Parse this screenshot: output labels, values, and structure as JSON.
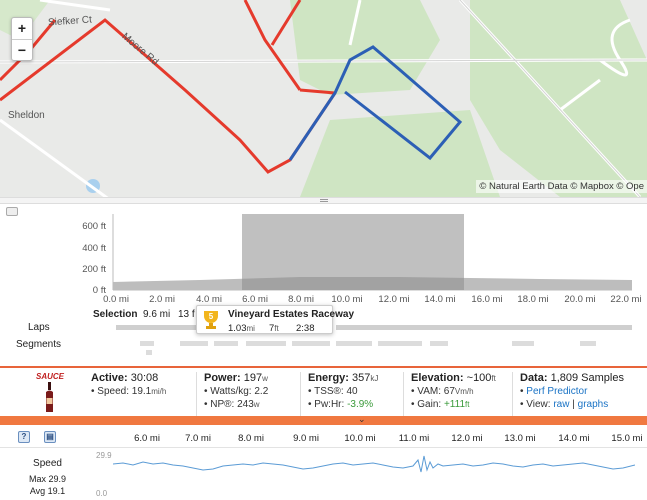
{
  "map": {
    "zoom_in": "+",
    "zoom_out": "−",
    "attribution": "© Natural Earth Data © Mapbox © Ope",
    "street_labels": [
      "Siefker Ct",
      "Moore Rd",
      "Sheldon"
    ]
  },
  "elevation": {
    "y_ticks": [
      "600 ft",
      "400 ft",
      "200 ft",
      "0 ft"
    ],
    "x_ticks": [
      "0.0 mi",
      "2.0 mi",
      "4.0 mi",
      "6.0 mi",
      "8.0 mi",
      "10.0 mi",
      "12.0 mi",
      "14.0 mi",
      "16.0 mi",
      "18.0 mi",
      "20.0 mi",
      "22.0 mi"
    ]
  },
  "selection": {
    "label": "Selection",
    "distance": "9.6 mi",
    "elevation": "13 f"
  },
  "rows": {
    "laps": "Laps",
    "segments": "Segments"
  },
  "tooltip": {
    "rank": "5",
    "name": "Vineyard Estates Raceway",
    "distance": "1.03",
    "distance_unit": "mi",
    "elevation": "7",
    "elevation_unit": "ft",
    "time": "2:38"
  },
  "stats": {
    "brand": "SAUCE",
    "active": {
      "title": "Active:",
      "value": "30:08",
      "speed_label": "• Speed:",
      "speed": "19.1",
      "speed_unit": "mi/h"
    },
    "power": {
      "title": "Power:",
      "value": "197",
      "unit": "w",
      "wkg_label": "• Watts/kg:",
      "wkg": "2.2",
      "np_label": "• NP®:",
      "np": "243",
      "np_unit": "w"
    },
    "energy": {
      "title": "Energy:",
      "value": "357",
      "unit": "kJ",
      "tss_label": "• TSS®:",
      "tss": "40",
      "pwhr_label": "• Pw:Hr:",
      "pwhr": "-3.9%"
    },
    "elevation": {
      "title": "Elevation:",
      "value": "~100",
      "unit": "ft",
      "vam_label": "• VAM:",
      "vam": "67",
      "vam_unit": "Vm/h",
      "gain_label": "• Gain:",
      "gain": "+111",
      "gain_unit": "ft"
    },
    "data": {
      "title": "Data:",
      "value": "1,809 Samples",
      "predictor": "Perf Predictor",
      "view_label": "• View:",
      "raw": "raw",
      "sep": "|",
      "graphs": "graphs"
    }
  },
  "collapse_glyph": "⌄",
  "bottom_axis": [
    "6.0 mi",
    "7.0 mi",
    "8.0 mi",
    "9.0 mi",
    "10.0 mi",
    "11.0 mi",
    "12.0 mi",
    "13.0 mi",
    "14.0 mi",
    "15.0 mi"
  ],
  "speed_stream": {
    "name": "Speed",
    "max": "Max 29.9",
    "avg": "Avg 19.1",
    "axis_top": "29.9",
    "axis_bottom": "0.0"
  },
  "colors": {
    "route_red": "#e53a2c",
    "route_blue": "#2c5fb5",
    "accent_orange": "#f07840",
    "stream_blue": "#5b9bd5"
  }
}
